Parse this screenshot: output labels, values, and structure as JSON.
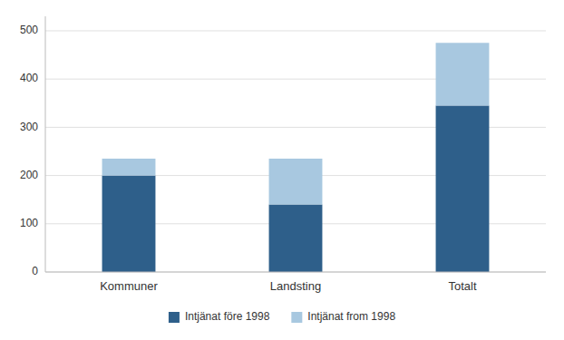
{
  "chart_data": {
    "type": "bar",
    "stacked": true,
    "categories": [
      "Kommuner",
      "Landsting",
      "Totalt"
    ],
    "series": [
      {
        "name": "Intjänat före 1998",
        "color": "#2E5F8A",
        "values": [
          200,
          140,
          345
        ]
      },
      {
        "name": "Intjänat from 1998",
        "color": "#A8C8E0",
        "values": [
          35,
          95,
          130
        ]
      }
    ],
    "ylim": [
      0,
      530
    ],
    "yticks": [
      0,
      100,
      200,
      300,
      400,
      500
    ],
    "grid": true,
    "legend": "bottom"
  }
}
